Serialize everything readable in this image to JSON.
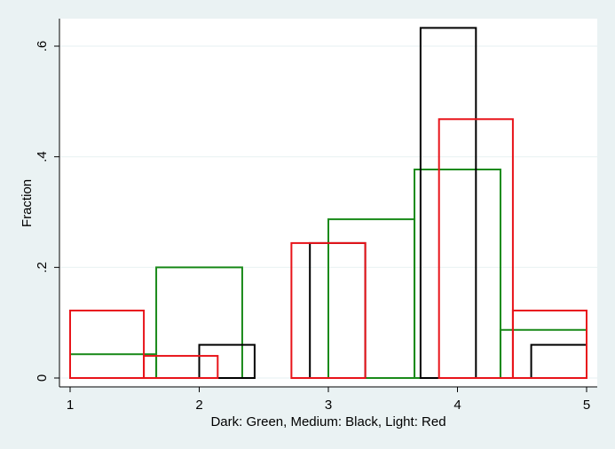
{
  "chart_data": {
    "type": "bar",
    "subtype": "histogram-overlay",
    "title": "",
    "xlabel": "Dark: Green, Medium: Black, Light: Red",
    "ylabel": "Fraction",
    "xlim": [
      1,
      5
    ],
    "ylim": [
      0,
      0.6
    ],
    "x_ticks": [
      1,
      2,
      3,
      4,
      5
    ],
    "x_tick_labels": [
      "1",
      "2",
      "3",
      "4",
      "5"
    ],
    "y_ticks": [
      0,
      0.2,
      0.4,
      0.6
    ],
    "y_tick_labels": [
      "0",
      ".2",
      ".4",
      ".6"
    ],
    "grid": true,
    "legend": null,
    "series": [
      {
        "name": "Dark",
        "color": "#1a8a1a",
        "bins": [
          {
            "x0": 1.0,
            "x1": 1.667,
            "value": 0.043
          },
          {
            "x0": 1.667,
            "x1": 2.333,
            "value": 0.2
          },
          {
            "x0": 2.333,
            "x1": 3.0,
            "value": 0.0
          },
          {
            "x0": 3.0,
            "x1": 3.667,
            "value": 0.287
          },
          {
            "x0": 3.667,
            "x1": 4.333,
            "value": 0.377
          },
          {
            "x0": 4.333,
            "x1": 5.0,
            "value": 0.087
          }
        ]
      },
      {
        "name": "Medium",
        "color": "#000000",
        "bins": [
          {
            "x0": 2.0,
            "x1": 2.429,
            "value": 0.06
          },
          {
            "x0": 2.429,
            "x1": 2.857,
            "value": 0.0
          },
          {
            "x0": 2.857,
            "x1": 3.286,
            "value": 0.244
          },
          {
            "x0": 3.286,
            "x1": 3.714,
            "value": 0.0
          },
          {
            "x0": 3.714,
            "x1": 4.143,
            "value": 0.633
          },
          {
            "x0": 4.143,
            "x1": 4.571,
            "value": 0.0
          },
          {
            "x0": 4.571,
            "x1": 5.0,
            "value": 0.06
          }
        ]
      },
      {
        "name": "Light",
        "color": "#e8141a",
        "bins": [
          {
            "x0": 1.0,
            "x1": 1.571,
            "value": 0.122
          },
          {
            "x0": 1.571,
            "x1": 2.143,
            "value": 0.04
          },
          {
            "x0": 2.143,
            "x1": 2.714,
            "value": 0.0
          },
          {
            "x0": 2.714,
            "x1": 3.286,
            "value": 0.244
          },
          {
            "x0": 3.286,
            "x1": 3.857,
            "value": 0.0
          },
          {
            "x0": 3.857,
            "x1": 4.429,
            "value": 0.468
          },
          {
            "x0": 4.429,
            "x1": 5.0,
            "value": 0.122
          }
        ]
      }
    ]
  },
  "colors": {
    "background": "#eaf2f3",
    "plot_background": "#ffffff",
    "gridline": "#eaf2f3",
    "axis": "#000000"
  }
}
